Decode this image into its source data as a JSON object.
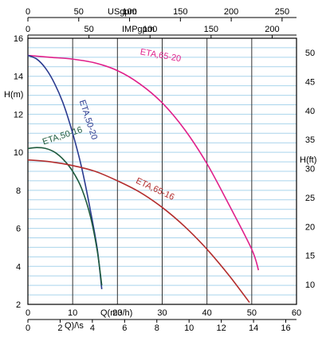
{
  "chart_data": {
    "type": "line",
    "title": "",
    "xlabel": "Q(m3/h)",
    "ylabel": "H(m)",
    "y2label": "H(ft)",
    "xlim": [
      0,
      60
    ],
    "ylim": [
      2,
      16
    ],
    "x_ticks": [
      0,
      10,
      20,
      30,
      40,
      50,
      60
    ],
    "y_ticks": [
      2,
      4,
      6,
      8,
      10,
      12,
      14,
      16
    ],
    "y2_ticks": [
      10,
      15,
      20,
      25,
      30,
      35,
      40,
      45,
      50
    ],
    "top_axes": [
      {
        "label": "USgpm",
        "ticks": [
          "0",
          "50",
          "100",
          "150",
          "200",
          "250"
        ]
      },
      {
        "label": "IMPgpm",
        "ticks": [
          "0",
          "50",
          "100",
          "150",
          "200"
        ]
      }
    ],
    "bottom_axis2": {
      "label": "Q)/\\s",
      "ticks": [
        "0",
        "2",
        "4",
        "6",
        "8",
        "10",
        "12",
        "14",
        "16"
      ]
    },
    "grid": true,
    "series": [
      {
        "name": "ETA,65-20",
        "color": "#e0208a",
        "x": [
          0,
          5,
          10,
          15,
          20,
          25,
          30,
          35,
          40,
          45,
          50,
          51.5
        ],
        "y": [
          15.1,
          15.0,
          14.9,
          14.7,
          14.3,
          13.6,
          12.6,
          11.2,
          9.4,
          7.2,
          4.9,
          3.8
        ]
      },
      {
        "name": "ETA,50-20",
        "color": "#2a3a8f",
        "x": [
          0,
          2,
          4,
          6,
          8,
          10,
          12,
          14,
          15.5,
          16.5
        ],
        "y": [
          15.1,
          14.9,
          14.4,
          13.6,
          12.5,
          11.0,
          9.2,
          6.9,
          4.9,
          2.8
        ]
      },
      {
        "name": "ETA,50-16",
        "color": "#1e5a3c",
        "x": [
          0,
          2,
          4,
          6,
          8,
          10,
          12,
          14,
          15.5,
          16.5
        ],
        "y": [
          10.2,
          10.25,
          10.2,
          10.0,
          9.6,
          9.0,
          8.1,
          6.6,
          4.8,
          3.0
        ]
      },
      {
        "name": "ETA,65-16",
        "color": "#b32d2d",
        "x": [
          0,
          5,
          10,
          15,
          20,
          25,
          30,
          35,
          40,
          45,
          49.5
        ],
        "y": [
          9.6,
          9.5,
          9.3,
          9.0,
          8.5,
          7.9,
          7.1,
          6.1,
          4.9,
          3.5,
          2.1
        ]
      }
    ]
  }
}
